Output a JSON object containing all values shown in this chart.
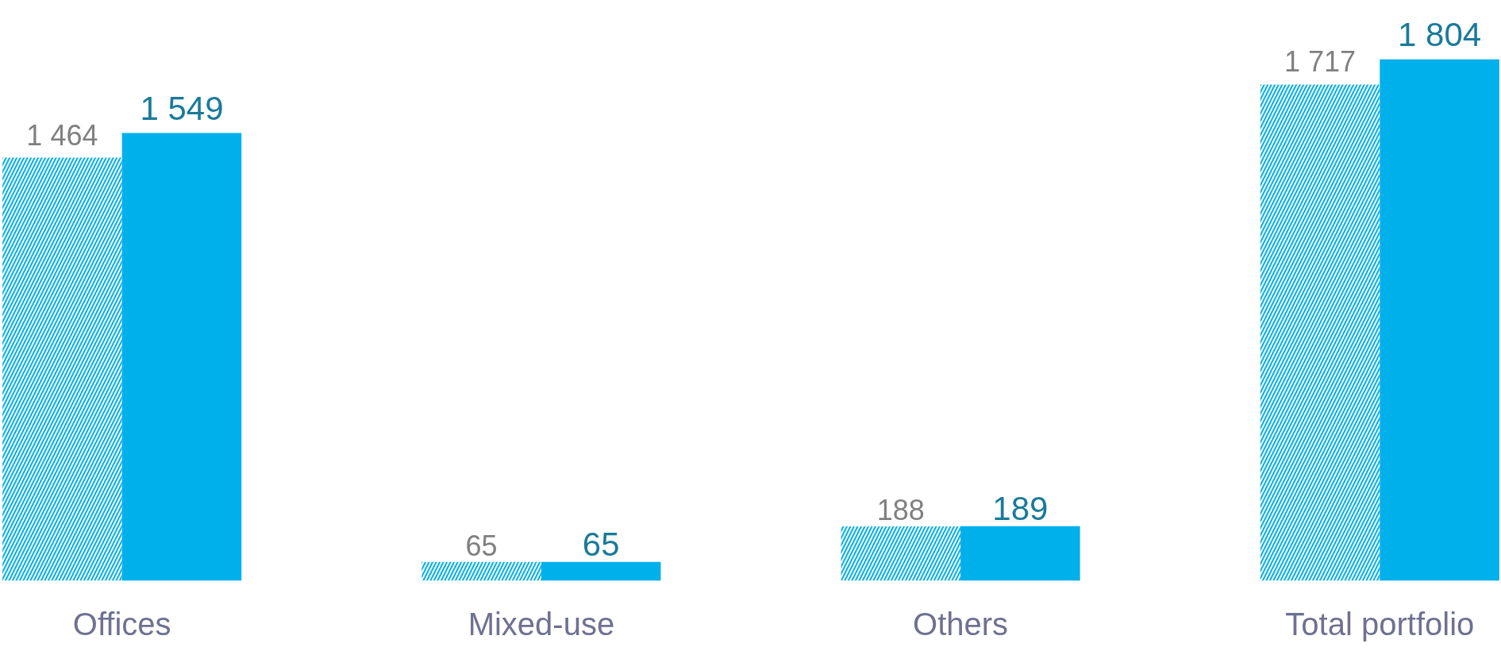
{
  "chart_data": {
    "type": "bar",
    "categories": [
      "Offices",
      "Mixed-use",
      "Others",
      "Total portfolio"
    ],
    "series": [
      {
        "color": "#00b0eb",
        "values": [
          1464,
          65,
          188,
          1717
        ],
        "value_labels": [
          "1 464",
          "65",
          "188",
          "1 717"
        ]
      },
      {
        "color": "#00b0eb",
        "values": [
          1549,
          65,
          189,
          1804
        ],
        "value_labels": [
          "1 549",
          "65",
          "189",
          "1 804"
        ]
      }
    ],
    "grid": false
  }
}
